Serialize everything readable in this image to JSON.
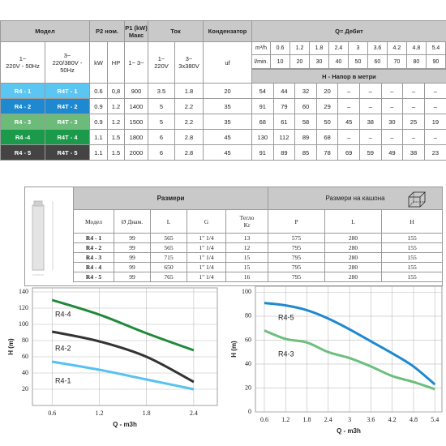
{
  "spec_table": {
    "columns": [
      "Модел",
      "P2 ном.",
      "P1 (kW)\nМакс",
      "Ток",
      "Кондензатор",
      "Q= Дебит"
    ],
    "subcolumns": [
      "1~\n220V - 50Hz",
      "3~\n220/380V - 50Hz",
      "kW",
      "HP",
      "1~   3~",
      "1~\n220V",
      "3~\n3x380V",
      "uf"
    ],
    "flow_m3h_label": "m³/h",
    "flow_m3h": [
      "0.6",
      "1.2",
      "1.8",
      "2.4",
      "3",
      "3.6",
      "4.2",
      "4.8",
      "5.4"
    ],
    "flow_lmin_label": "l/min.",
    "flow_lmin": [
      "10",
      "20",
      "30",
      "40",
      "50",
      "60",
      "70",
      "80",
      "90"
    ],
    "head_label": "H - Напор в метри",
    "row_colors": [
      "#5cc6f2",
      "#1e88d0",
      "#6dbb7a",
      "#1a9a4a",
      "#444444"
    ],
    "rows": [
      [
        "R4 - 1",
        "R4T - 1",
        "0.6",
        "0,8",
        "900",
        "3.5",
        "1.8",
        "20",
        "54",
        "44",
        "32",
        "20",
        "–",
        "–",
        "–",
        "–",
        "–"
      ],
      [
        "R4 - 2",
        "R4T - 2",
        "0.9",
        "1.2",
        "1400",
        "5",
        "2.2",
        "35",
        "91",
        "79",
        "60",
        "29",
        "–",
        "–",
        "–",
        "–",
        "–"
      ],
      [
        "R4 - 3",
        "R4T - 3",
        "0.9",
        "1.2",
        "1500",
        "5",
        "2.2",
        "35",
        "68",
        "61",
        "58",
        "50",
        "45",
        "38",
        "30",
        "25",
        "19"
      ],
      [
        "R4 -4",
        "R4T - 4",
        "1.1",
        "1.5",
        "1800",
        "6",
        "2.8",
        "45",
        "130",
        "112",
        "89",
        "68",
        "–",
        "–",
        "–",
        "–",
        "–"
      ],
      [
        "R4 - 5",
        "R4T - 5",
        "1.1",
        "1.5",
        "2000",
        "6",
        "2.8",
        "45",
        "91",
        "89",
        "85",
        "78",
        "69",
        "59",
        "49",
        "38",
        "23"
      ]
    ]
  },
  "dimensions_table": {
    "title": "Размери",
    "box_title": "Размери на кашона",
    "columns": [
      "Модел",
      "Ø Диам.",
      "L",
      "G",
      "Тегло\nKr",
      "P",
      "L",
      "H"
    ],
    "rows": [
      [
        "R4 - 1",
        "99",
        "565",
        "1\" 1/4",
        "13",
        "575",
        "280",
        "155"
      ],
      [
        "R4 - 2",
        "99",
        "565",
        "1\" 1/4",
        "12",
        "795",
        "280",
        "155"
      ],
      [
        "R4 - 3",
        "99",
        "715",
        "1\" 1/4",
        "15",
        "795",
        "280",
        "155"
      ],
      [
        "R4 - 4",
        "99",
        "650",
        "1\" 1/4",
        "15",
        "795",
        "280",
        "155"
      ],
      [
        "R4 - 5",
        "99",
        "765",
        "1\" 1/4",
        "16",
        "795",
        "280",
        "155"
      ]
    ]
  },
  "chart_data": [
    {
      "type": "line",
      "xlabel": "Q - m3h",
      "ylabel": "H (m)",
      "x": [
        0.6,
        1.2,
        1.8,
        2.4
      ],
      "xlim": [
        0.35,
        2.7
      ],
      "ylim": [
        0,
        145
      ],
      "xticks": [
        0.6,
        1.2,
        1.8,
        2.4
      ],
      "yticks": [
        20,
        40,
        60,
        80,
        100,
        120,
        140
      ],
      "grid": true,
      "series": [
        {
          "name": "R4-4",
          "color": "#1f8a3a",
          "values": [
            130,
            112,
            89,
            68
          ]
        },
        {
          "name": "R4-2",
          "color": "#333333",
          "values": [
            91,
            79,
            60,
            29
          ]
        },
        {
          "name": "R4-1",
          "color": "#55c2f0",
          "values": [
            54,
            44,
            32,
            20
          ]
        }
      ]
    },
    {
      "type": "line",
      "xlabel": "Q - m3h",
      "ylabel": "H (m)",
      "x": [
        0.6,
        1.2,
        1.8,
        2.4,
        3,
        3.6,
        4.2,
        4.8,
        5.4
      ],
      "xlim": [
        0.35,
        5.6
      ],
      "ylim": [
        0,
        105
      ],
      "xticks": [
        0.6,
        1.2,
        1.8,
        2.4,
        3,
        3.6,
        4.2,
        4.8,
        5.4
      ],
      "yticks": [
        0,
        20,
        40,
        60,
        80,
        100
      ],
      "grid": true,
      "series": [
        {
          "name": "R4-5",
          "color": "#1e88d0",
          "values": [
            91,
            89,
            85,
            78,
            69,
            59,
            49,
            38,
            23
          ]
        },
        {
          "name": "R4-3",
          "color": "#6cbf7c",
          "values": [
            68,
            61,
            58,
            50,
            45,
            38,
            30,
            25,
            19
          ]
        }
      ]
    }
  ]
}
